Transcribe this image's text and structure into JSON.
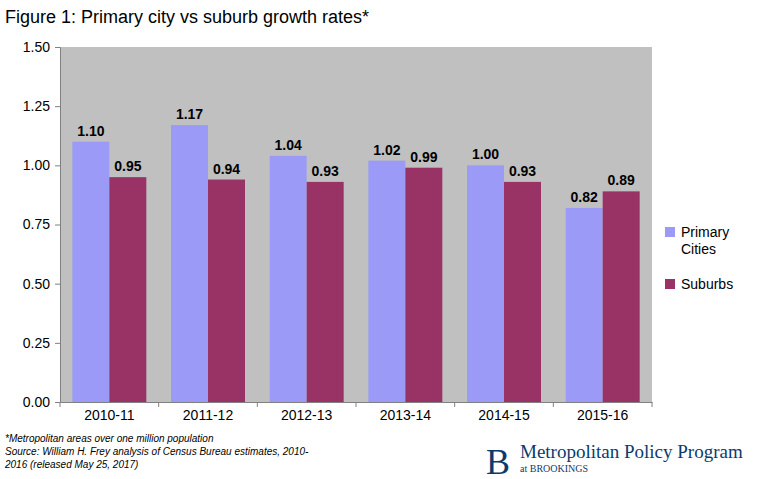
{
  "chart_data": {
    "type": "bar",
    "title": "Figure 1: Primary city vs suburb growth rates*",
    "categories": [
      "2010-11",
      "2011-12",
      "2012-13",
      "2013-14",
      "2014-15",
      "2015-16"
    ],
    "series": [
      {
        "name": "Primary Cities",
        "color": "#9b9bf7",
        "values": [
          1.1,
          1.17,
          1.04,
          1.02,
          1.0,
          0.82
        ],
        "value_labels": [
          "1.10",
          "1.17",
          "1.04",
          "1.02",
          "1.00",
          "0.82"
        ]
      },
      {
        "name": "Suburbs",
        "color": "#993366",
        "values": [
          0.95,
          0.94,
          0.93,
          0.99,
          0.93,
          0.89
        ],
        "value_labels": [
          "0.95",
          "0.94",
          "0.93",
          "0.99",
          "0.93",
          "0.89"
        ]
      }
    ],
    "ylim": [
      0,
      1.5
    ],
    "yticks": [
      {
        "value": 0,
        "label": "0.00"
      },
      {
        "value": 0.25,
        "label": "0.25"
      },
      {
        "value": 0.5,
        "label": "0.50"
      },
      {
        "value": 0.75,
        "label": "0.75"
      },
      {
        "value": 1,
        "label": "1.00"
      },
      {
        "value": 1.25,
        "label": "1.25"
      },
      {
        "value": 1.5,
        "label": "1.50"
      }
    ],
    "grid": false,
    "legend": "right",
    "data_labels": true,
    "annotations": [
      "*Metropolitan areas over one million population",
      "Source: William H. Frey analysis of Census Bureau estimates, 2010-",
      "2016 (released May 25, 2017)",
      "B",
      "Metropolitan Policy Program",
      "at BROOKINGS"
    ]
  }
}
